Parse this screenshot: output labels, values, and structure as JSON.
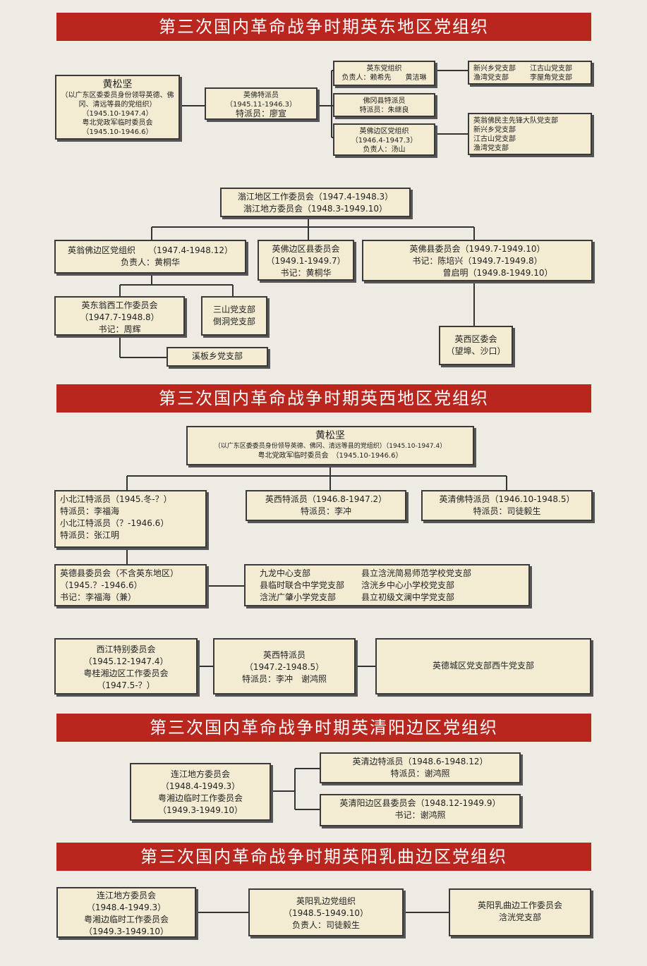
{
  "s1": {
    "title": "第三次国内革命战争时期英东地区党组织",
    "huang": [
      "黄松坚",
      "（以广东区委委员身份领导英德、佛",
      "冈、清远等县的党组织）",
      "（1945.10-1947.4）",
      "粤北党政军临时委员会",
      "（1945.10-1946.6）"
    ],
    "yingfo": [
      "英佛特派员",
      "（1945.11-1946.3）",
      "特派员：廖宣"
    ],
    "yingdong": [
      "英东党组织",
      "负责人：赖希先　　黄洁琳"
    ],
    "fogang": [
      "佛冈县特派员",
      "特派员：朱继良"
    ],
    "yingfobian": [
      "英佛边区党组织",
      "（1946.4-1947.3）",
      "负责人：汤山"
    ],
    "r1": [
      "新兴乡党支部　　江古山党支部",
      "渔湾党支部　　　李屋角党支部"
    ],
    "r2": [
      "英翁佛民主先锋大队党支部",
      "新兴乡党支部",
      "江古山党支部",
      "渔湾党支部"
    ],
    "wengjiang": [
      "滃江地区工作委员会（1947.4-1948.3）",
      "滃江地方委员会（1948.3-1949.10）"
    ],
    "yingwengfo": [
      "英翁佛边区党组织　　（1947.4-1948.12）",
      "负责人：黄桐华"
    ],
    "yingfobianxian": [
      "英佛边区县委员会",
      "（1949.1-1949.7）",
      "书记：黄桐华"
    ],
    "yingfoxian": [
      "英佛县委员会（1949.7-1949.10）",
      "书记：陈培兴（1949.7-1949.8）",
      "曾启明（1949.8-1949.10）"
    ],
    "yingdongwengxi": [
      "英东翁西工作委员会",
      "（1947.7-1948.8）",
      "书记：周辉"
    ],
    "sanshan": [
      "三山党支部",
      "倒洞党支部"
    ],
    "xiban": [
      "溪板乡党支部"
    ],
    "yingxiqu": [
      "英西区委会",
      "（望埠、沙口）"
    ]
  },
  "s2": {
    "title": "第三次国内革命战争时期英西地区党组织",
    "huang": [
      "黄松坚",
      "（以广东区委委员身份领导英德、佛冈、清远等县的党组织）（1945.10-1947.4）",
      "粤北党政军临时委员会　（1945.10-1946.6）"
    ],
    "xiaobeijiang": [
      "小北江特派员（1945.冬-？）",
      "特派员：李福海",
      "小北江特派员（？-1946.6）",
      "特派员：张江明"
    ],
    "yingxi": [
      "英西特派员（1946.8-1947.2）",
      "特派员：李冲"
    ],
    "yingqingfo": [
      "英清佛特派员（1946.10-1948.5）",
      "特派员：司徒毅生"
    ],
    "yingdexian": [
      "英德县委员会（不含英东地区）",
      "（1945.？-1946.6）",
      "书记：李福海（兼）"
    ],
    "branches": [
      "九龙中心支部　　　　　　县立浛洸简易师范学校党支部",
      "县临时联合中学党支部　　浛洸乡中心小学校党支部",
      "浛洸广肇小学党支部　　　县立初级文澜中学党支部"
    ],
    "xijiang": [
      "西江特别委员会",
      "（1945.12-1947.4）",
      "粤桂湘边区工作委员会",
      "（1947.5-？）"
    ],
    "yingxi2": [
      "英西特派员",
      "（1947.2-1948.5）",
      "特派员：李冲　谢鸿照"
    ],
    "yingdecheng": [
      "英德城区党支部西牛党支部"
    ]
  },
  "s3": {
    "title": "第三次国内革命战争时期英清阳边区党组织",
    "lianjiang": [
      "连江地方委员会",
      "（1948.4-1949.3）",
      "粤湘边临时工作委员会",
      "（1949.3-1949.10）"
    ],
    "yingqingbian": [
      "英清边特派员（1948.6-1948.12）",
      "特派员：谢鸿照"
    ],
    "yingqingyang": [
      "英清阳边区县委员会（1948.12-1949.9）",
      "书记：谢鸿照"
    ]
  },
  "s4": {
    "title": "第三次国内革命战争时期英阳乳曲边区党组织",
    "lianjiang": [
      "连江地方委员会",
      "（1948.4-1949.3）",
      "粤湘边临时工作委员会",
      "（1949.3-1949.10）"
    ],
    "yingyangru": [
      "英阳乳边党组织",
      "（1948.5-1949.10）",
      "负责人：司徒毅生"
    ],
    "workcomm": [
      "英阳乳曲边工作委员会",
      "浛洸党支部"
    ]
  },
  "colors": {
    "banner": "#b9261e",
    "box": "#f3ecd3",
    "background": "#eeebe4"
  }
}
